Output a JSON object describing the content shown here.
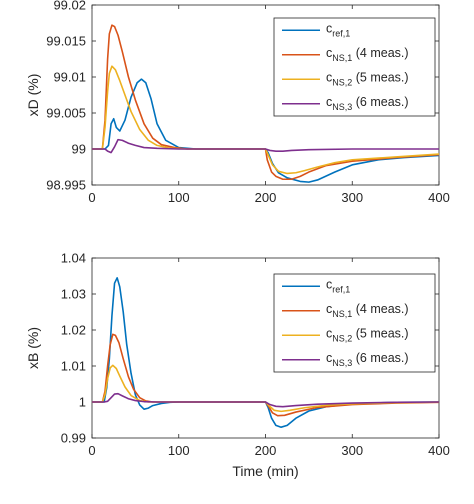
{
  "chart_data": [
    {
      "type": "line",
      "title": "",
      "xlabel": "",
      "ylabel": "xD (%)",
      "xlim": [
        0,
        400
      ],
      "ylim": [
        98.995,
        99.02
      ],
      "xticks": [
        0,
        100,
        200,
        300,
        400
      ],
      "xtick_labels": [
        "0",
        "100",
        "200",
        "300",
        "400"
      ],
      "yticks": [
        98.995,
        99,
        99.005,
        99.01,
        99.015,
        99.02
      ],
      "ytick_labels": [
        "98.995",
        "99",
        "99.005",
        "99.01",
        "99.015",
        "99.02"
      ],
      "grid": false,
      "legend_position": "top-right",
      "series": [
        {
          "name": "c_ref,1",
          "legend_main": "c",
          "legend_sub": "ref,1",
          "legend_extra": "",
          "color": "#0072BD",
          "x": [
            0,
            15,
            19,
            22,
            25,
            28,
            32,
            38,
            45,
            52,
            57,
            62,
            68,
            75,
            85,
            100,
            120,
            150,
            200,
            203,
            208,
            215,
            225,
            240,
            250,
            260,
            280,
            300,
            330,
            360,
            400
          ],
          "y": [
            99,
            99,
            99.0005,
            99.0035,
            99.0042,
            99.003,
            99.0025,
            99.004,
            99.0072,
            99.0092,
            99.0097,
            99.0092,
            99.007,
            99.0035,
            99.0012,
            99.0002,
            99,
            99,
            99,
            98.9995,
            98.998,
            98.9967,
            98.996,
            98.9955,
            98.9954,
            98.9957,
            98.9968,
            98.9978,
            98.9985,
            98.9988,
            98.9991
          ]
        },
        {
          "name": "c_NS,1",
          "legend_main": "c",
          "legend_sub": "NS,1",
          "legend_extra": " (4 meas.)",
          "color": "#D95319",
          "x": [
            0,
            12,
            15,
            18,
            20,
            23,
            26,
            30,
            35,
            42,
            50,
            60,
            70,
            80,
            95,
            110,
            130,
            150,
            200,
            202,
            207,
            212,
            220,
            230,
            240,
            250,
            270,
            300,
            350,
            400
          ],
          "y": [
            99,
            99,
            99.004,
            99.0125,
            99.016,
            99.0172,
            99.017,
            99.0158,
            99.0135,
            99.01,
            99.0068,
            99.0035,
            99.0015,
            99.0006,
            99.0002,
            99,
            99,
            99,
            99,
            98.9985,
            98.9968,
            98.9962,
            98.9958,
            98.9958,
            98.9962,
            98.9968,
            98.9977,
            98.9983,
            98.9988,
            98.9992
          ]
        },
        {
          "name": "c_NS,2",
          "legend_main": "c",
          "legend_sub": "NS,2",
          "legend_extra": " (5 meas.)",
          "color": "#EDB120",
          "x": [
            0,
            12,
            15,
            18,
            20,
            23,
            27,
            32,
            38,
            45,
            55,
            65,
            75,
            90,
            110,
            150,
            200,
            203,
            208,
            215,
            225,
            235,
            245,
            260,
            280,
            300,
            350,
            400
          ],
          "y": [
            99,
            99,
            99.003,
            99.008,
            99.0105,
            99.0115,
            99.011,
            99.0095,
            99.0075,
            99.0052,
            99.0027,
            99.0012,
            99.0005,
            99.0001,
            99,
            99,
            99,
            98.9992,
            98.9978,
            98.9969,
            98.9966,
            98.9967,
            98.997,
            98.9975,
            98.9981,
            98.9985,
            98.9989,
            98.9993
          ]
        },
        {
          "name": "c_NS,3",
          "legend_main": "c",
          "legend_sub": "NS,3",
          "legend_extra": " (6 meas.)",
          "color": "#7E2F8E",
          "x": [
            0,
            15,
            18,
            22,
            26,
            30,
            35,
            42,
            50,
            60,
            75,
            100,
            150,
            200,
            205,
            212,
            220,
            230,
            250,
            300,
            350,
            400
          ],
          "y": [
            99,
            99,
            98.9997,
            98.9995,
            99.0003,
            99.0013,
            99.0012,
            99.0008,
            99.0005,
            99.0002,
            99.0001,
            99,
            99,
            99,
            98.9998,
            98.9997,
            98.9997,
            98.9998,
            98.9999,
            99,
            99,
            99
          ]
        }
      ]
    },
    {
      "type": "line",
      "title": "",
      "xlabel": "Time (min)",
      "ylabel": "xB (%)",
      "xlim": [
        0,
        400
      ],
      "ylim": [
        0.99,
        1.04
      ],
      "xticks": [
        0,
        100,
        200,
        300,
        400
      ],
      "xtick_labels": [
        "0",
        "100",
        "200",
        "300",
        "400"
      ],
      "yticks": [
        0.99,
        1,
        1.01,
        1.02,
        1.03,
        1.04
      ],
      "ytick_labels": [
        "0.99",
        "1",
        "1.01",
        "1.02",
        "1.03",
        "1.04"
      ],
      "grid": false,
      "legend_position": "top-right",
      "series": [
        {
          "name": "c_ref,1",
          "legend_main": "c",
          "legend_sub": "ref,1",
          "legend_extra": "",
          "color": "#0072BD",
          "x": [
            0,
            14,
            17,
            20,
            23,
            26,
            29,
            32,
            36,
            40,
            45,
            50,
            55,
            60,
            65,
            70,
            80,
            90,
            100,
            130,
            200,
            203,
            207,
            212,
            218,
            225,
            235,
            250,
            270,
            300,
            350,
            400
          ],
          "y": [
            1,
            1,
            1.004,
            1.012,
            1.024,
            1.033,
            1.0345,
            1.032,
            1.025,
            1.016,
            1.008,
            1.002,
            0.9992,
            0.998,
            0.9983,
            0.999,
            0.9996,
            0.9999,
            1,
            1,
            1,
            0.9985,
            0.9955,
            0.9935,
            0.993,
            0.9935,
            0.9955,
            0.9975,
            0.9987,
            0.9995,
            0.9999,
            1
          ]
        },
        {
          "name": "c_NS,1",
          "legend_main": "c",
          "legend_sub": "NS,1",
          "legend_extra": " (4 meas.)",
          "color": "#D95319",
          "x": [
            0,
            12,
            15,
            18,
            21,
            24,
            27,
            31,
            36,
            42,
            48,
            55,
            62,
            70,
            80,
            100,
            200,
            203,
            208,
            214,
            222,
            235,
            260,
            300,
            350,
            400
          ],
          "y": [
            1,
            1,
            1.003,
            1.01,
            1.016,
            1.0188,
            1.0185,
            1.0165,
            1.012,
            1.007,
            1.0035,
            1.0012,
            1.0003,
            1,
            1,
            1,
            1,
            0.999,
            0.997,
            0.9962,
            0.9963,
            0.9972,
            0.9985,
            0.9993,
            0.9997,
            0.9999
          ]
        },
        {
          "name": "c_NS,2",
          "legend_main": "c",
          "legend_sub": "NS,2",
          "legend_extra": " (5 meas.)",
          "color": "#EDB120",
          "x": [
            0,
            12,
            15,
            18,
            21,
            24,
            28,
            32,
            38,
            45,
            55,
            65,
            80,
            100,
            200,
            204,
            210,
            218,
            228,
            245,
            270,
            300,
            350,
            400
          ],
          "y": [
            1,
            1,
            1.002,
            1.0065,
            1.0095,
            1.0102,
            1.0093,
            1.0072,
            1.0042,
            1.0018,
            1.0004,
            1,
            1,
            1,
            1,
            0.999,
            0.9977,
            0.9974,
            0.9977,
            0.9984,
            0.9991,
            0.9995,
            0.9998,
            1
          ]
        },
        {
          "name": "c_NS,3",
          "legend_main": "c",
          "legend_sub": "NS,3",
          "legend_extra": " (6 meas.)",
          "color": "#7E2F8E",
          "x": [
            0,
            14,
            18,
            22,
            26,
            30,
            35,
            42,
            50,
            60,
            75,
            100,
            200,
            205,
            212,
            220,
            235,
            260,
            300,
            350,
            400
          ],
          "y": [
            1,
            1,
            1.0002,
            1.0012,
            1.0022,
            1.0023,
            1.0017,
            1.0009,
            1.0004,
            1.0001,
            1,
            1,
            1,
            0.9993,
            0.9988,
            0.9987,
            0.999,
            0.9994,
            0.9997,
            0.9999,
            1
          ]
        }
      ]
    }
  ]
}
